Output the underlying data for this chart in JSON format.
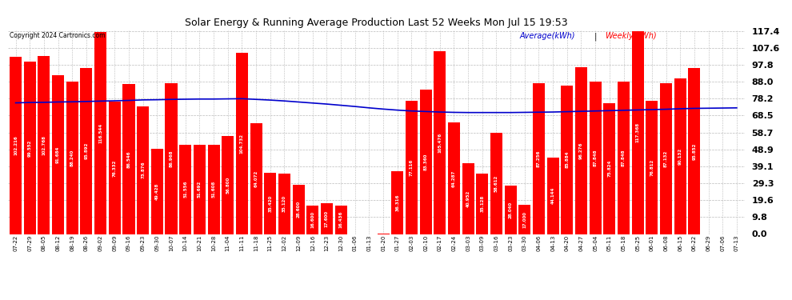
{
  "title": "Solar Energy & Running Average Production Last 52 Weeks Mon Jul 15 19:53",
  "copyright": "Copyright 2024 Cartronics.com",
  "legend_avg": "Average(kWh)",
  "legend_weekly": "Weekly(kWh)",
  "bar_color": "#ff0000",
  "avg_line_color": "#0000cc",
  "background_color": "#ffffff",
  "grid_color": "#bbbbbb",
  "yticks": [
    0.0,
    9.8,
    19.6,
    29.3,
    39.1,
    48.9,
    58.7,
    68.5,
    78.2,
    88.0,
    97.8,
    107.6,
    117.4
  ],
  "dates": [
    "07-22",
    "07-29",
    "08-05",
    "08-12",
    "08-19",
    "08-26",
    "09-02",
    "09-09",
    "09-16",
    "09-23",
    "09-30",
    "10-07",
    "10-14",
    "10-21",
    "10-28",
    "11-04",
    "11-11",
    "11-18",
    "11-25",
    "12-02",
    "12-09",
    "12-16",
    "12-23",
    "12-30",
    "01-06",
    "01-13",
    "01-20",
    "01-27",
    "02-03",
    "02-10",
    "02-17",
    "02-24",
    "03-03",
    "03-09",
    "03-16",
    "03-23",
    "03-30",
    "04-06",
    "04-13",
    "04-20",
    "04-27",
    "05-04",
    "05-11",
    "05-18",
    "05-25",
    "06-01",
    "06-08",
    "06-15",
    "06-22",
    "06-29",
    "07-06",
    "07-13"
  ],
  "weekly_values": [
    102.216,
    99.552,
    102.768,
    91.684,
    88.24,
    95.892,
    116.544,
    76.332,
    86.546,
    73.876,
    49.428,
    86.968,
    51.556,
    51.692,
    51.608,
    56.8,
    104.732,
    64.072,
    35.42,
    35.12,
    28.6,
    16.6,
    17.6,
    16.436,
    0.0,
    0.0,
    0.148,
    36.316,
    77.116,
    83.36,
    105.476,
    64.287,
    40.952,
    35.128,
    58.612,
    28.04,
    17.0,
    87.256,
    44.144,
    85.884,
    96.276,
    87.848,
    75.824,
    87.848,
    117.368,
    76.812,
    87.132,
    90.132,
    95.852,
    0.0,
    0.0,
    0.0
  ],
  "avg_values": [
    75.8,
    76.0,
    76.1,
    76.3,
    76.4,
    76.6,
    76.8,
    77.0,
    77.2,
    77.5,
    77.6,
    77.8,
    77.9,
    78.0,
    78.0,
    78.1,
    78.2,
    77.8,
    77.4,
    76.9,
    76.3,
    75.7,
    75.1,
    74.4,
    73.7,
    72.9,
    72.2,
    71.6,
    71.1,
    70.8,
    70.5,
    70.3,
    70.2,
    70.2,
    70.2,
    70.2,
    70.3,
    70.4,
    70.5,
    70.7,
    70.9,
    71.1,
    71.3,
    71.5,
    71.7,
    71.9,
    72.1,
    72.4,
    72.6,
    72.7,
    72.8,
    72.9
  ]
}
